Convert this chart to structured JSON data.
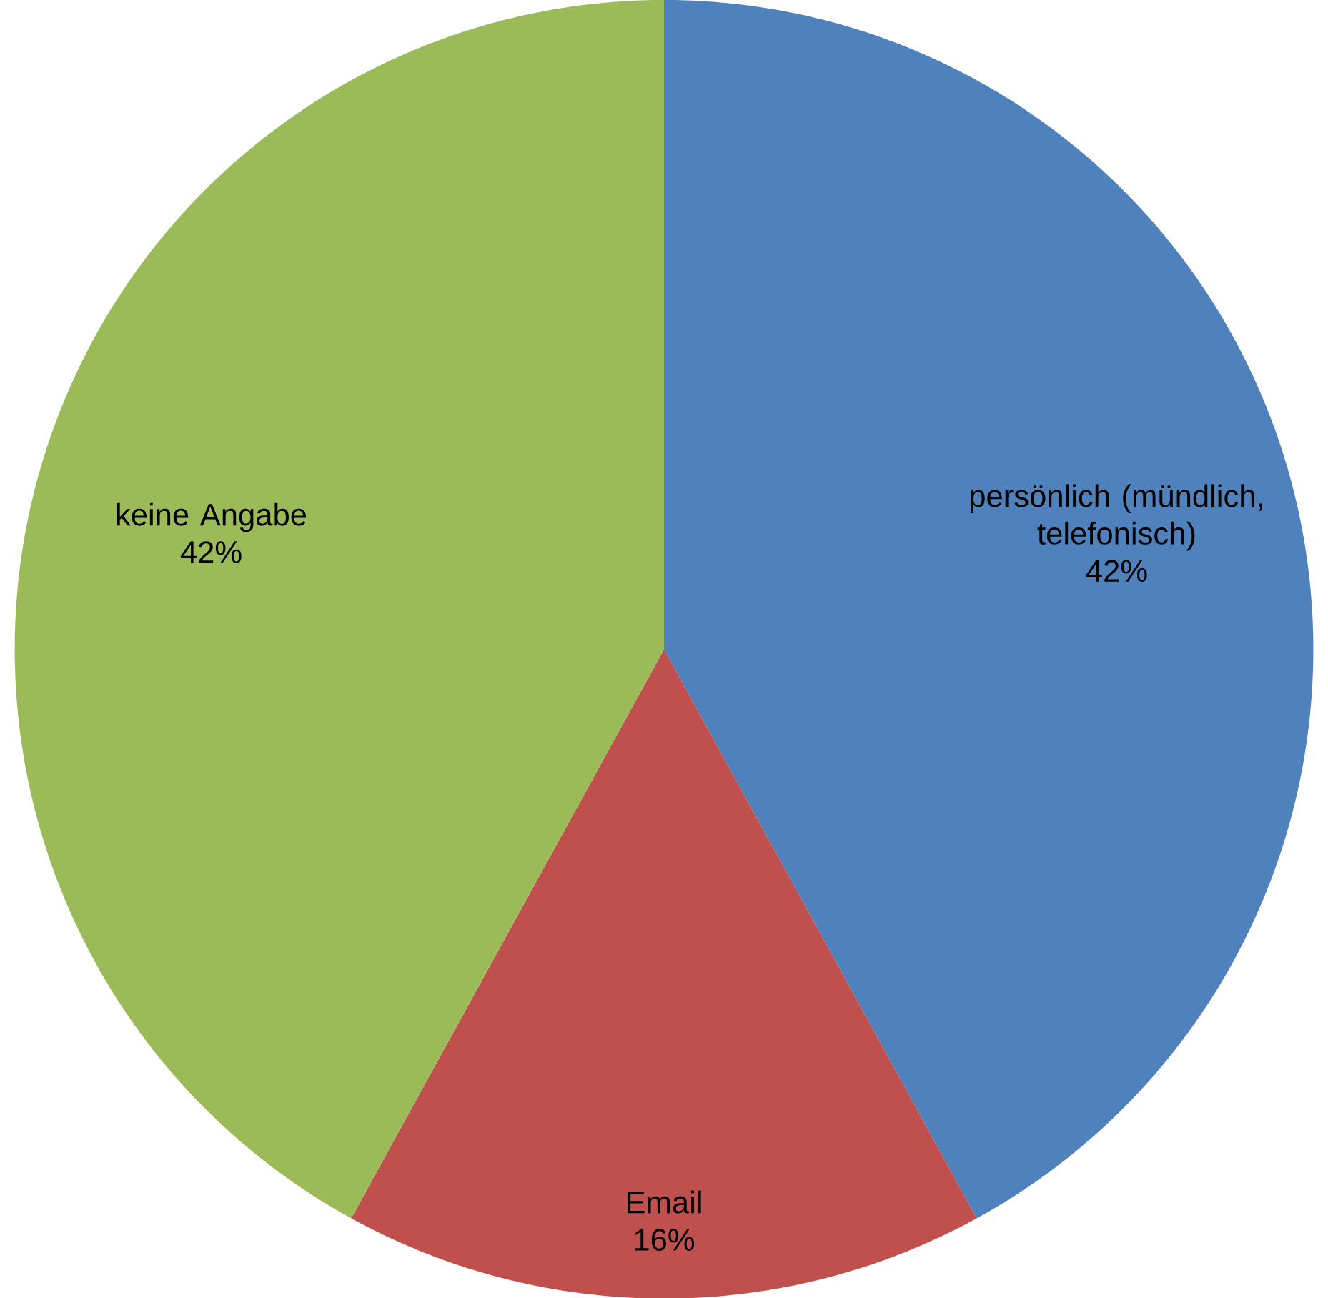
{
  "chart_data": {
    "type": "pie",
    "categories": [
      "persönlich (mündlich, telefonisch)",
      "Email",
      "keine Angabe"
    ],
    "values": [
      42,
      16,
      42
    ],
    "value_labels": [
      "42%",
      "16%",
      "42%"
    ],
    "colors": [
      "#4f81bd",
      "#c0504d",
      "#9bbb59"
    ]
  }
}
